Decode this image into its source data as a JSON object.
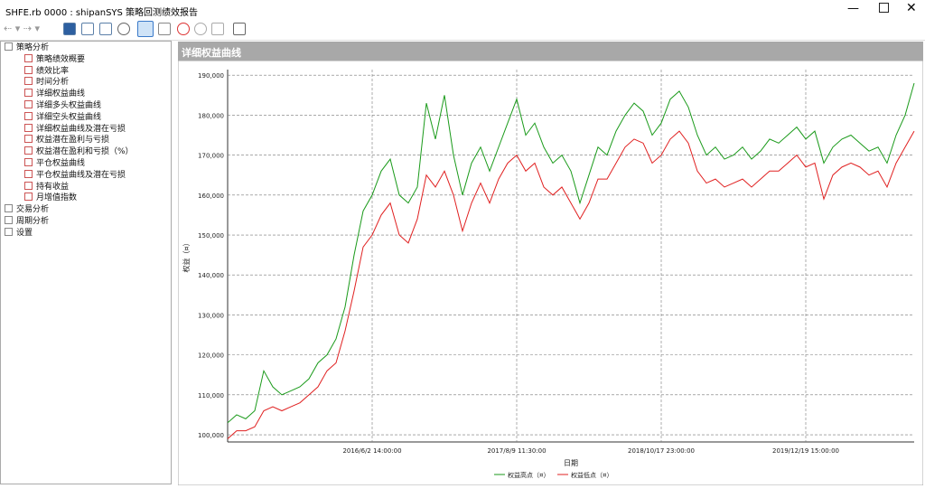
{
  "window": {
    "title": "SHFE.rb 0000 : shipanSYS 策略回测绩效报告"
  },
  "tree": [
    {
      "label": "策略分析",
      "children": [
        "策略绩效概要",
        "绩效比率",
        "时间分析",
        "详细权益曲线",
        "详细多头权益曲线",
        "详细空头权益曲线",
        "详细权益曲线及潜在亏损",
        "权益潜在盈利与亏损",
        "权益潜在盈利和亏损（%）",
        "平仓权益曲线",
        "平仓权益曲线及潜在亏损",
        "持有收益",
        "月增值指数"
      ]
    },
    {
      "label": "交易分析",
      "children": []
    },
    {
      "label": "周期分析",
      "children": []
    },
    {
      "label": "设置",
      "children": []
    }
  ],
  "panel": {
    "title": "详细权益曲线"
  },
  "chart_data": {
    "type": "line",
    "y_label": "权益（¤）",
    "x_label": "日期",
    "categories": [
      null,
      null,
      null,
      null,
      null,
      null,
      null,
      null,
      null,
      null,
      null,
      null,
      null,
      null,
      null,
      null,
      "2016/6/2 14:00:00",
      null,
      null,
      null,
      null,
      null,
      null,
      null,
      null,
      null,
      null,
      null,
      null,
      null,
      null,
      null,
      "2017/8/9 11:30:00",
      null,
      null,
      null,
      null,
      null,
      null,
      null,
      null,
      null,
      null,
      null,
      null,
      null,
      null,
      null,
      "2018/10/17 23:00:00",
      null,
      null,
      null,
      null,
      null,
      null,
      null,
      null,
      null,
      null,
      null,
      null,
      null,
      null,
      null,
      "2019/12/19 15:00:00",
      null,
      null,
      null,
      null,
      null,
      null,
      null,
      null,
      null,
      null,
      null,
      null
    ],
    "series": [
      {
        "name": "权益高点（¤）",
        "color": "#1a9a1a",
        "values": [
          103000,
          105000,
          104000,
          106000,
          116000,
          112000,
          110000,
          111000,
          112000,
          114000,
          118000,
          120000,
          124000,
          132000,
          145000,
          156000,
          160000,
          166000,
          169000,
          160000,
          158000,
          162000,
          183000,
          174000,
          185000,
          170000,
          160000,
          168000,
          172000,
          166000,
          172000,
          178000,
          184000,
          175000,
          178000,
          172000,
          168000,
          170000,
          166000,
          158000,
          165000,
          172000,
          170000,
          176000,
          180000,
          183000,
          181000,
          175000,
          178000,
          184000,
          186000,
          182000,
          175000,
          170000,
          172000,
          169000,
          170000,
          172000,
          169000,
          171000,
          174000,
          173000,
          175000,
          177000,
          174000,
          176000,
          168000,
          172000,
          174000,
          175000,
          173000,
          171000,
          172000,
          168000,
          175000,
          180000,
          188000
        ]
      },
      {
        "name": "权益低点（¤）",
        "color": "#e02020",
        "values": [
          99000,
          101000,
          101000,
          102000,
          106000,
          107000,
          106000,
          107000,
          108000,
          110000,
          112000,
          116000,
          118000,
          126000,
          136000,
          147000,
          150000,
          155000,
          158000,
          150000,
          148000,
          154000,
          165000,
          162000,
          166000,
          160000,
          151000,
          158000,
          163000,
          158000,
          164000,
          168000,
          170000,
          166000,
          168000,
          162000,
          160000,
          162000,
          158000,
          154000,
          158000,
          164000,
          164000,
          168000,
          172000,
          174000,
          173000,
          168000,
          170000,
          174000,
          176000,
          173000,
          166000,
          163000,
          164000,
          162000,
          163000,
          164000,
          162000,
          164000,
          166000,
          166000,
          168000,
          170000,
          167000,
          168000,
          159000,
          165000,
          167000,
          168000,
          167000,
          165000,
          166000,
          162000,
          168000,
          172000,
          176000
        ]
      }
    ],
    "ylim": [
      98200,
      191400
    ],
    "yticks": [
      {
        "value": 100000,
        "label": "100,000"
      },
      {
        "value": 110000,
        "label": "110,000"
      },
      {
        "value": 120000,
        "label": "120,000"
      },
      {
        "value": 130000,
        "label": "130,000"
      },
      {
        "value": 140000,
        "label": "140,000"
      },
      {
        "value": 150000,
        "label": "150,000"
      },
      {
        "value": 160000,
        "label": "160,000"
      },
      {
        "value": 170000,
        "label": "170,000"
      },
      {
        "value": 180000,
        "label": "180,000"
      },
      {
        "value": 190000,
        "label": "190,000"
      }
    ],
    "grid": true
  }
}
